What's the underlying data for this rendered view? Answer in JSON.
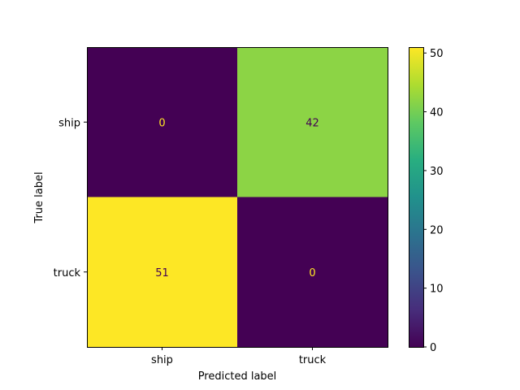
{
  "chart_data": {
    "type": "heatmap",
    "title": "",
    "xlabel": "Predicted label",
    "ylabel": "True label",
    "x_categories": [
      "ship",
      "truck"
    ],
    "y_categories": [
      "ship",
      "truck"
    ],
    "matrix": [
      [
        0,
        42
      ],
      [
        51,
        0
      ]
    ],
    "colormap": "viridis",
    "colorbar": {
      "min": 0,
      "max": 51,
      "ticks": [
        0,
        10,
        20,
        30,
        40,
        50
      ]
    },
    "grid": false
  }
}
